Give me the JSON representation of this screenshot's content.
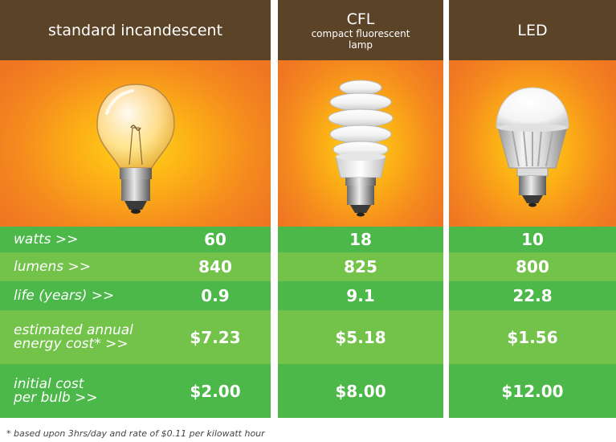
{
  "columns": [
    {
      "title": "standard incandescent",
      "subtitle": ""
    },
    {
      "title": "CFL",
      "subtitle": "compact fluorescent lamp"
    },
    {
      "title": "LED",
      "subtitle": ""
    }
  ],
  "rows": [
    {
      "label": "watts >>",
      "values": [
        "60",
        "18",
        "10"
      ]
    },
    {
      "label": "lumens >>",
      "values": [
        "840",
        "825",
        "800"
      ]
    },
    {
      "label": "life (years) >>",
      "values": [
        "0.9",
        "9.1",
        "22.8"
      ]
    },
    {
      "label_line1": "estimated annual",
      "label_line2": "energy cost* >>",
      "values": [
        "$7.23",
        "$5.18",
        "$1.56"
      ]
    },
    {
      "label_line1": "initial cost",
      "label_line2": "per bulb >>",
      "values": [
        "$2.00",
        "$8.00",
        "$12.00"
      ]
    }
  ],
  "footnote": "* based upon 3hrs/day and rate of $0.11 per kilowatt hour",
  "colors": {
    "header_bg": "#5b4328",
    "row_dark": "#4bb849",
    "row_light": "#73c24a",
    "glow_center": "#ffd41c",
    "glow_edge": "#ef7722"
  },
  "icons": [
    "incandescent-bulb-icon",
    "cfl-bulb-icon",
    "led-bulb-icon"
  ]
}
